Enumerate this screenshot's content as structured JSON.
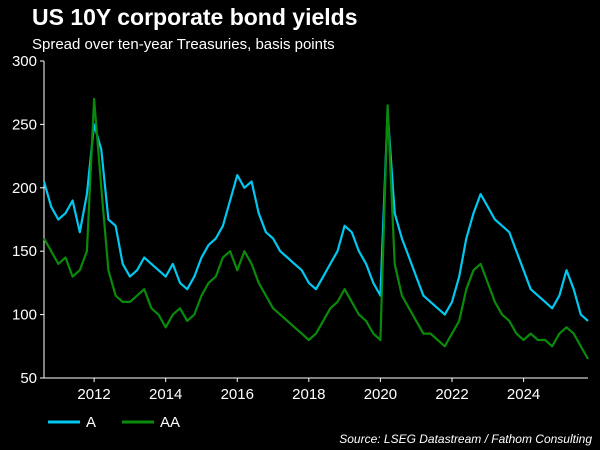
{
  "header": {
    "title": "US 10Y corporate bond yields",
    "subtitle": "Spread over ten-year Treasuries, basis points"
  },
  "footer": {
    "source": "Source: LSEG Datastream / Fathom Consulting"
  },
  "colors": {
    "background": "#000000",
    "axis": "#ffffff",
    "series_A": "#00c8f0",
    "series_AA": "#0a8a0a"
  },
  "chart_data": {
    "type": "line",
    "title": "US 10Y corporate bond yields",
    "subtitle": "Spread over ten-year Treasuries, basis points",
    "xlabel": "",
    "ylabel": "",
    "ylim": [
      50,
      300
    ],
    "xlim": [
      2010.6,
      2025.8
    ],
    "y_ticks": [
      50,
      100,
      150,
      200,
      250,
      300
    ],
    "x_ticks": [
      "2012",
      "2014",
      "2016",
      "2018",
      "2020",
      "2022",
      "2024"
    ],
    "grid": false,
    "legend_position": "bottom-left",
    "x": [
      2010.6,
      2010.8,
      2011.0,
      2011.2,
      2011.4,
      2011.6,
      2011.8,
      2012.0,
      2012.2,
      2012.4,
      2012.6,
      2012.8,
      2013.0,
      2013.2,
      2013.4,
      2013.6,
      2013.8,
      2014.0,
      2014.2,
      2014.4,
      2014.6,
      2014.8,
      2015.0,
      2015.2,
      2015.4,
      2015.6,
      2015.8,
      2016.0,
      2016.2,
      2016.4,
      2016.6,
      2016.8,
      2017.0,
      2017.2,
      2017.4,
      2017.6,
      2017.8,
      2018.0,
      2018.2,
      2018.4,
      2018.6,
      2018.8,
      2019.0,
      2019.2,
      2019.4,
      2019.6,
      2019.8,
      2020.0,
      2020.2,
      2020.4,
      2020.6,
      2020.8,
      2021.0,
      2021.2,
      2021.4,
      2021.6,
      2021.8,
      2022.0,
      2022.2,
      2022.4,
      2022.6,
      2022.8,
      2023.0,
      2023.2,
      2023.4,
      2023.6,
      2023.8,
      2024.0,
      2024.2,
      2024.4,
      2024.6,
      2024.8,
      2025.0,
      2025.2,
      2025.4,
      2025.6,
      2025.8
    ],
    "series": [
      {
        "name": "A",
        "values": [
          205,
          185,
          175,
          180,
          190,
          165,
          195,
          250,
          230,
          175,
          170,
          140,
          130,
          135,
          145,
          140,
          135,
          130,
          140,
          125,
          120,
          130,
          145,
          155,
          160,
          170,
          190,
          210,
          200,
          205,
          180,
          165,
          160,
          150,
          145,
          140,
          135,
          125,
          120,
          130,
          140,
          150,
          170,
          165,
          150,
          140,
          125,
          115,
          260,
          180,
          160,
          145,
          130,
          115,
          110,
          105,
          100,
          110,
          130,
          160,
          180,
          195,
          185,
          175,
          170,
          165,
          150,
          135,
          120,
          115,
          110,
          105,
          115,
          135,
          120,
          100,
          95
        ]
      },
      {
        "name": "AA",
        "values": [
          160,
          150,
          140,
          145,
          130,
          135,
          150,
          270,
          200,
          135,
          115,
          110,
          110,
          115,
          120,
          105,
          100,
          90,
          100,
          105,
          95,
          100,
          115,
          125,
          130,
          145,
          150,
          135,
          150,
          140,
          125,
          115,
          105,
          100,
          95,
          90,
          85,
          80,
          85,
          95,
          105,
          110,
          120,
          110,
          100,
          95,
          85,
          80,
          265,
          140,
          115,
          105,
          95,
          85,
          85,
          80,
          75,
          85,
          95,
          120,
          135,
          140,
          125,
          110,
          100,
          95,
          85,
          80,
          85,
          80,
          80,
          75,
          85,
          90,
          85,
          75,
          65
        ]
      }
    ]
  }
}
